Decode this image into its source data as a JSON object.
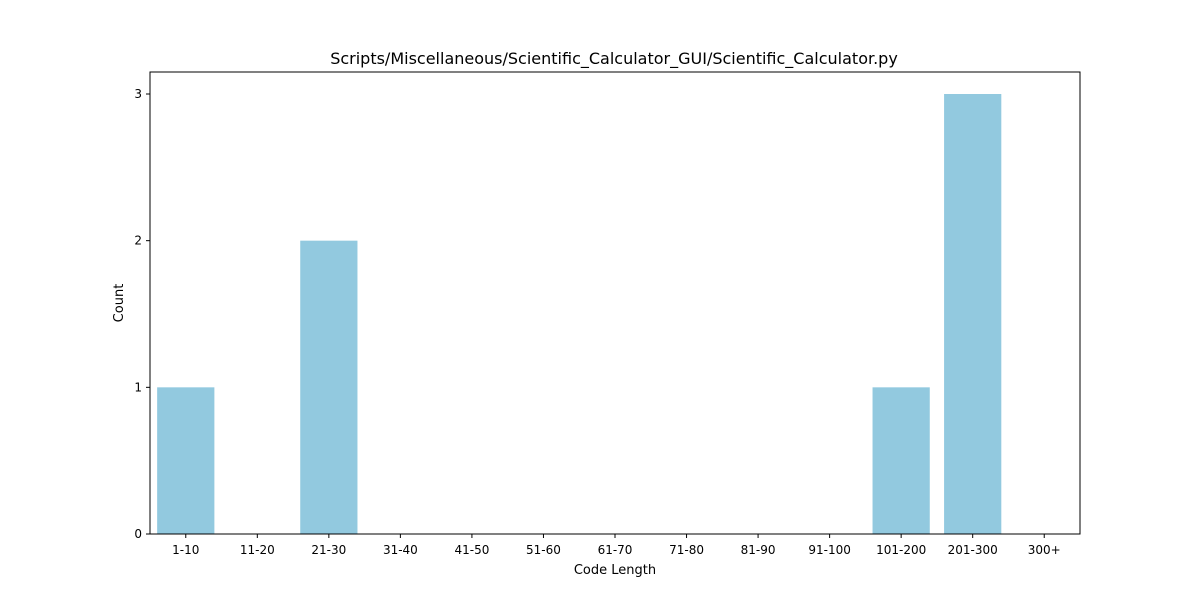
{
  "chart_data": {
    "type": "bar",
    "title": "Scripts/Miscellaneous/Scientific_Calculator_GUI/Scientific_Calculator.py",
    "xlabel": "Code Length",
    "ylabel": "Count",
    "categories": [
      "1-10",
      "11-20",
      "21-30",
      "31-40",
      "41-50",
      "51-60",
      "61-70",
      "71-80",
      "81-90",
      "91-100",
      "101-200",
      "201-300",
      "300+"
    ],
    "values": [
      1,
      0,
      2,
      0,
      0,
      0,
      0,
      0,
      0,
      0,
      1,
      3,
      0
    ],
    "ylim": [
      0,
      3.15
    ],
    "yticks": [
      0,
      1,
      2,
      3
    ],
    "grid": false,
    "bar_color": "#92c9df"
  }
}
